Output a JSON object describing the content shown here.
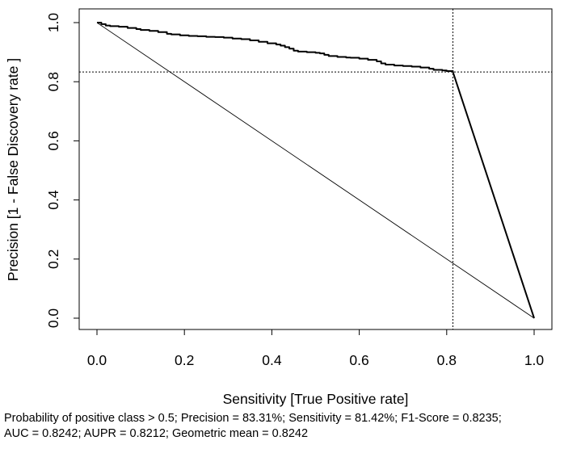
{
  "chart_data": {
    "type": "line",
    "xlabel": "Sensitivity [True Positive rate]",
    "ylabel": "Precision [1 - False Discovery rate ]",
    "xlim": [
      0,
      1
    ],
    "ylim": [
      0,
      1
    ],
    "x_ticks": [
      "0.0",
      "0.2",
      "0.4",
      "0.6",
      "0.8",
      "1.0"
    ],
    "y_ticks": [
      "0.0",
      "0.2",
      "0.4",
      "0.6",
      "0.8",
      "1.0"
    ],
    "grid": false,
    "series": [
      {
        "style": "step",
        "points": [
          [
            0.0,
            1.0
          ],
          [
            0.01,
            0.995
          ],
          [
            0.02,
            0.99
          ],
          [
            0.03,
            0.988
          ],
          [
            0.05,
            0.986
          ],
          [
            0.07,
            0.982
          ],
          [
            0.09,
            0.978
          ],
          [
            0.1,
            0.975
          ],
          [
            0.12,
            0.972
          ],
          [
            0.14,
            0.968
          ],
          [
            0.16,
            0.962
          ],
          [
            0.17,
            0.96
          ],
          [
            0.19,
            0.957
          ],
          [
            0.21,
            0.955
          ],
          [
            0.23,
            0.954
          ],
          [
            0.25,
            0.952
          ],
          [
            0.27,
            0.951
          ],
          [
            0.29,
            0.949
          ],
          [
            0.31,
            0.946
          ],
          [
            0.33,
            0.944
          ],
          [
            0.35,
            0.94
          ],
          [
            0.37,
            0.935
          ],
          [
            0.39,
            0.93
          ],
          [
            0.41,
            0.926
          ],
          [
            0.42,
            0.922
          ],
          [
            0.43,
            0.917
          ],
          [
            0.44,
            0.912
          ],
          [
            0.45,
            0.905
          ],
          [
            0.46,
            0.902
          ],
          [
            0.48,
            0.9
          ],
          [
            0.5,
            0.898
          ],
          [
            0.51,
            0.896
          ],
          [
            0.52,
            0.891
          ],
          [
            0.53,
            0.887
          ],
          [
            0.55,
            0.884
          ],
          [
            0.57,
            0.882
          ],
          [
            0.58,
            0.881
          ],
          [
            0.6,
            0.878
          ],
          [
            0.62,
            0.874
          ],
          [
            0.64,
            0.869
          ],
          [
            0.65,
            0.862
          ],
          [
            0.66,
            0.858
          ],
          [
            0.68,
            0.855
          ],
          [
            0.7,
            0.853
          ],
          [
            0.72,
            0.851
          ],
          [
            0.74,
            0.848
          ],
          [
            0.76,
            0.844
          ],
          [
            0.77,
            0.84
          ],
          [
            0.79,
            0.838
          ],
          [
            0.8,
            0.836
          ],
          [
            0.8142,
            0.8331
          ]
        ]
      },
      {
        "style": "line",
        "points": [
          [
            0.8142,
            0.8331
          ],
          [
            1.0,
            0.0
          ]
        ]
      },
      {
        "style": "thin",
        "points": [
          [
            0.0,
            1.0
          ],
          [
            1.0,
            0.0
          ]
        ]
      }
    ],
    "reference_lines": {
      "vertical_x": 0.8142,
      "horizontal_y": 0.8331,
      "style": "dotted"
    }
  },
  "footer": {
    "line1": "Probability of positive class > 0.5; Precision = 83.31%; Sensitivity = 81.42%; F1-Score = 0.8235;",
    "line2": "AUC = 0.8242; AUPR = 0.8212; Geometric mean = 0.8242"
  }
}
